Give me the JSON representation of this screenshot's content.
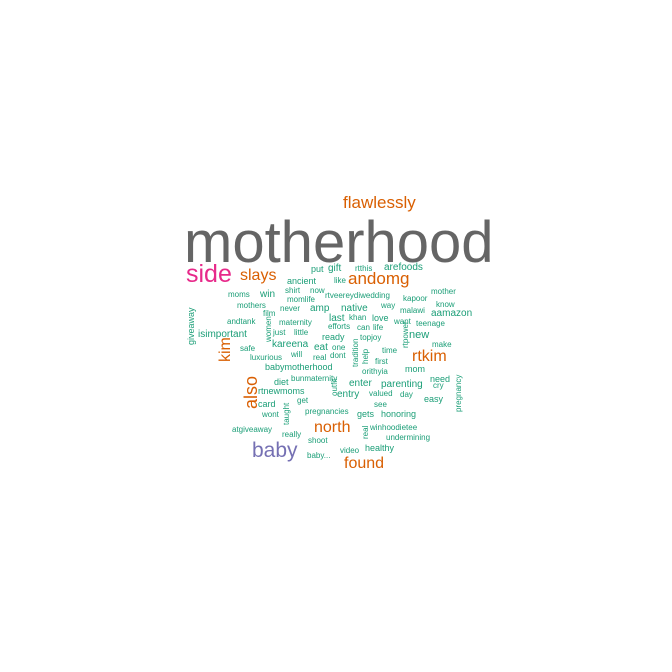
{
  "colors": {
    "background": "#ffffff",
    "gray": "#656565",
    "orange": "#d95f02",
    "magenta": "#e7298a",
    "purple": "#7570b3",
    "teal": "#1b9e77"
  },
  "words": [
    {
      "text": "motherhood",
      "color": "gray",
      "vertical": false
    },
    {
      "text": "flawlessly",
      "color": "orange",
      "vertical": false
    },
    {
      "text": "side",
      "color": "magenta",
      "vertical": false
    },
    {
      "text": "slays",
      "color": "orange",
      "vertical": false
    },
    {
      "text": "andomg",
      "color": "orange",
      "vertical": false
    },
    {
      "text": "put",
      "color": "teal",
      "vertical": false
    },
    {
      "text": "gift",
      "color": "teal",
      "vertical": false
    },
    {
      "text": "rtthis",
      "color": "teal",
      "vertical": false
    },
    {
      "text": "arefoods",
      "color": "teal",
      "vertical": false
    },
    {
      "text": "ancient",
      "color": "teal",
      "vertical": false
    },
    {
      "text": "like",
      "color": "teal",
      "vertical": false
    },
    {
      "text": "shirt",
      "color": "teal",
      "vertical": false
    },
    {
      "text": "now",
      "color": "teal",
      "vertical": false
    },
    {
      "text": "mother",
      "color": "teal",
      "vertical": false
    },
    {
      "text": "moms",
      "color": "teal",
      "vertical": false
    },
    {
      "text": "win",
      "color": "teal",
      "vertical": false
    },
    {
      "text": "momlife",
      "color": "teal",
      "vertical": false
    },
    {
      "text": "rtveereydiwedding",
      "color": "teal",
      "vertical": false
    },
    {
      "text": "kapoor",
      "color": "teal",
      "vertical": false
    },
    {
      "text": "mothers",
      "color": "teal",
      "vertical": false
    },
    {
      "text": "never",
      "color": "teal",
      "vertical": false
    },
    {
      "text": "amp",
      "color": "teal",
      "vertical": false
    },
    {
      "text": "native",
      "color": "teal",
      "vertical": false
    },
    {
      "text": "way",
      "color": "teal",
      "vertical": false
    },
    {
      "text": "malawi",
      "color": "teal",
      "vertical": false
    },
    {
      "text": "know",
      "color": "teal",
      "vertical": false
    },
    {
      "text": "film",
      "color": "teal",
      "vertical": false
    },
    {
      "text": "aamazon",
      "color": "teal",
      "vertical": false
    },
    {
      "text": "andtank",
      "color": "teal",
      "vertical": false
    },
    {
      "text": "maternity",
      "color": "teal",
      "vertical": false
    },
    {
      "text": "last",
      "color": "teal",
      "vertical": false
    },
    {
      "text": "khan",
      "color": "teal",
      "vertical": false
    },
    {
      "text": "love",
      "color": "teal",
      "vertical": false
    },
    {
      "text": "want",
      "color": "teal",
      "vertical": false
    },
    {
      "text": "teenage",
      "color": "teal",
      "vertical": false
    },
    {
      "text": "giveaway",
      "color": "teal",
      "vertical": true
    },
    {
      "text": "isimportant",
      "color": "teal",
      "vertical": false
    },
    {
      "text": "women",
      "color": "teal",
      "vertical": true
    },
    {
      "text": "just",
      "color": "teal",
      "vertical": false
    },
    {
      "text": "little",
      "color": "teal",
      "vertical": false
    },
    {
      "text": "efforts",
      "color": "teal",
      "vertical": false
    },
    {
      "text": "can",
      "color": "teal",
      "vertical": false
    },
    {
      "text": "life",
      "color": "teal",
      "vertical": false
    },
    {
      "text": "ready",
      "color": "teal",
      "vertical": false
    },
    {
      "text": "topjoy",
      "color": "teal",
      "vertical": false
    },
    {
      "text": "new",
      "color": "teal",
      "vertical": false
    },
    {
      "text": "kim",
      "color": "orange",
      "vertical": true
    },
    {
      "text": "kareena",
      "color": "teal",
      "vertical": false
    },
    {
      "text": "eat",
      "color": "teal",
      "vertical": false
    },
    {
      "text": "one",
      "color": "teal",
      "vertical": false
    },
    {
      "text": "tradition",
      "color": "teal",
      "vertical": true
    },
    {
      "text": "rtpower",
      "color": "teal",
      "vertical": true
    },
    {
      "text": "make",
      "color": "teal",
      "vertical": false
    },
    {
      "text": "safe",
      "color": "teal",
      "vertical": false
    },
    {
      "text": "will",
      "color": "teal",
      "vertical": false
    },
    {
      "text": "real",
      "color": "teal",
      "vertical": false
    },
    {
      "text": "dont",
      "color": "teal",
      "vertical": false
    },
    {
      "text": "help",
      "color": "teal",
      "vertical": true
    },
    {
      "text": "time",
      "color": "teal",
      "vertical": false
    },
    {
      "text": "rtkim",
      "color": "orange",
      "vertical": false
    },
    {
      "text": "luxurious",
      "color": "teal",
      "vertical": false
    },
    {
      "text": "first",
      "color": "teal",
      "vertical": false
    },
    {
      "text": "babymotherhood",
      "color": "teal",
      "vertical": false
    },
    {
      "text": "orithyia",
      "color": "teal",
      "vertical": false
    },
    {
      "text": "mom",
      "color": "teal",
      "vertical": false
    },
    {
      "text": "bunmaternity",
      "color": "teal",
      "vertical": false
    },
    {
      "text": "need",
      "color": "teal",
      "vertical": false
    },
    {
      "text": "diet",
      "color": "teal",
      "vertical": false
    },
    {
      "text": "enter",
      "color": "teal",
      "vertical": false
    },
    {
      "text": "parenting",
      "color": "teal",
      "vertical": false
    },
    {
      "text": "cry",
      "color": "teal",
      "vertical": false
    },
    {
      "text": "also",
      "color": "orange",
      "vertical": true
    },
    {
      "text": "rtnewmoms",
      "color": "teal",
      "vertical": false
    },
    {
      "text": "outfit",
      "color": "teal",
      "vertical": true
    },
    {
      "text": "entry",
      "color": "teal",
      "vertical": false
    },
    {
      "text": "valued",
      "color": "teal",
      "vertical": false
    },
    {
      "text": "day",
      "color": "teal",
      "vertical": false
    },
    {
      "text": "easy",
      "color": "teal",
      "vertical": false
    },
    {
      "text": "pregnancy",
      "color": "teal",
      "vertical": true
    },
    {
      "text": "get",
      "color": "teal",
      "vertical": false
    },
    {
      "text": "card",
      "color": "teal",
      "vertical": false
    },
    {
      "text": "taught",
      "color": "teal",
      "vertical": true
    },
    {
      "text": "see",
      "color": "teal",
      "vertical": false
    },
    {
      "text": "wont",
      "color": "teal",
      "vertical": false
    },
    {
      "text": "pregnancies",
      "color": "teal",
      "vertical": false
    },
    {
      "text": "gets",
      "color": "teal",
      "vertical": false
    },
    {
      "text": "honoring",
      "color": "teal",
      "vertical": false
    },
    {
      "text": "north",
      "color": "orange",
      "vertical": false
    },
    {
      "text": "real",
      "color": "teal",
      "vertical": true
    },
    {
      "text": "winhoodietee",
      "color": "teal",
      "vertical": false
    },
    {
      "text": "atgiveaway",
      "color": "teal",
      "vertical": false
    },
    {
      "text": "really",
      "color": "teal",
      "vertical": false
    },
    {
      "text": "undermining",
      "color": "teal",
      "vertical": false
    },
    {
      "text": "shoot",
      "color": "teal",
      "vertical": false
    },
    {
      "text": "healthy",
      "color": "teal",
      "vertical": false
    },
    {
      "text": "video",
      "color": "teal",
      "vertical": false
    },
    {
      "text": "baby",
      "color": "purple",
      "vertical": false
    },
    {
      "text": "baby...",
      "color": "teal",
      "vertical": false
    },
    {
      "text": "found",
      "color": "orange",
      "vertical": false
    }
  ]
}
